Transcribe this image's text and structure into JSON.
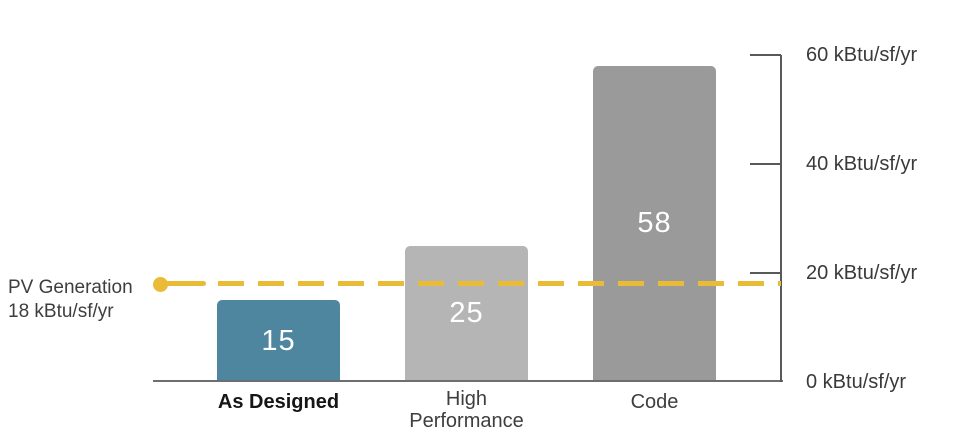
{
  "chart_data": {
    "type": "bar",
    "title": "",
    "unit": "kBtu/sf/yr",
    "categories": [
      "As Designed",
      "High Performance",
      "Code"
    ],
    "values": [
      15,
      25,
      58
    ],
    "value_labels": [
      "15",
      "25",
      "58"
    ],
    "bar_colors": [
      "#4e86a0",
      "#b5b5b5",
      "#9a9a9a"
    ],
    "emphasized_category": "As Designed",
    "ylim": [
      0,
      60
    ],
    "yticks": [
      0,
      20,
      40,
      60
    ],
    "ytick_labels": [
      "0 kBtu/sf/yr",
      "20 kBtu/sf/yr",
      "40 kBtu/sf/yr",
      "60 kBtu/sf/yr"
    ],
    "grid": false,
    "legend_position": "none",
    "axis_color": "#58595b",
    "reference_line": {
      "value": 18,
      "style": "dashed",
      "color": "#e9bb37",
      "label_line1": "PV Generation",
      "label_line2": "18 kBtu/sf/yr"
    }
  }
}
